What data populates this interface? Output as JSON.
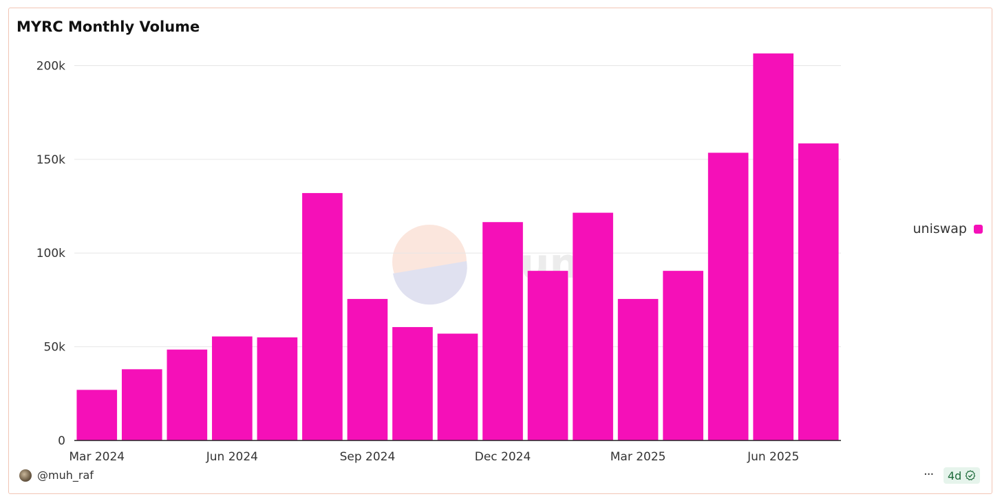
{
  "chart_data": {
    "type": "bar",
    "title": "MYRC Monthly Volume",
    "categories": [
      "Mar 2024",
      "Apr 2024",
      "May 2024",
      "Jun 2024",
      "Jul 2024",
      "Aug 2024",
      "Sep 2024",
      "Oct 2024",
      "Nov 2024",
      "Dec 2024",
      "Jan 2025",
      "Feb 2025",
      "Mar 2025",
      "Apr 2025",
      "May 2025",
      "Jun 2025",
      "Jul 2025"
    ],
    "series": [
      {
        "name": "uniswap",
        "color": "#f510b8",
        "values": [
          27000,
          38000,
          48500,
          55500,
          55000,
          132000,
          75500,
          60500,
          57000,
          116500,
          90500,
          121500,
          75500,
          90500,
          153500,
          206500,
          158500
        ]
      }
    ],
    "x_tick_labels": [
      "Mar 2024",
      "Jun 2024",
      "Sep 2024",
      "Dec 2024",
      "Mar 2025",
      "Jun 2025"
    ],
    "y_ticks": [
      0,
      50000,
      100000,
      150000,
      200000
    ],
    "y_tick_labels": [
      "0",
      "50k",
      "100k",
      "150k",
      "200k"
    ],
    "ylim": [
      0,
      213000
    ],
    "xlabel": "",
    "ylabel": "",
    "grid": true,
    "legend_position": "right"
  },
  "watermark": "Dune",
  "footer": {
    "author": "@muh_raf",
    "more_label": "···",
    "age": "4d"
  }
}
